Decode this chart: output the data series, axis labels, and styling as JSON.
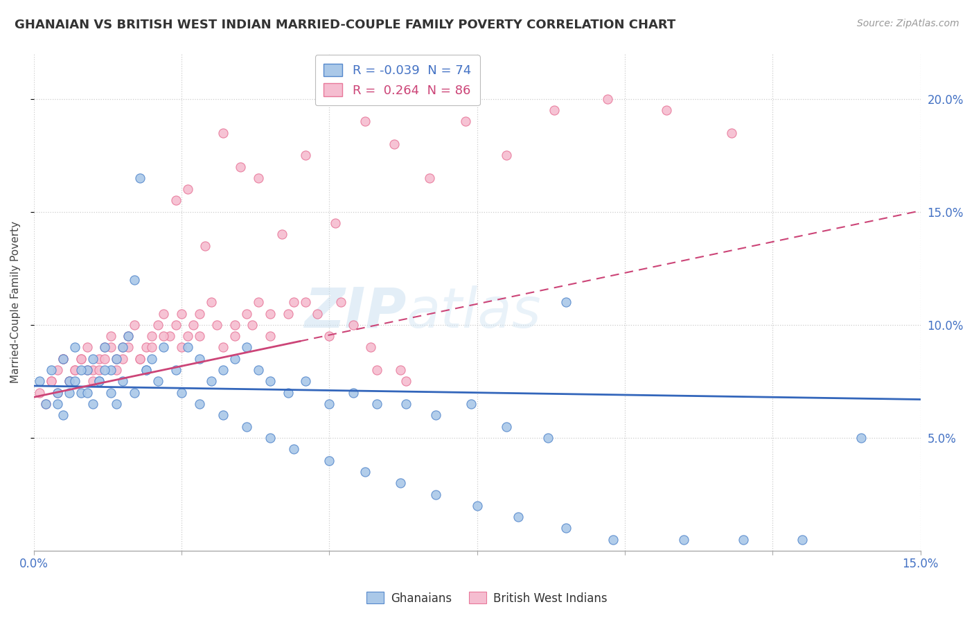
{
  "title": "GHANAIAN VS BRITISH WEST INDIAN MARRIED-COUPLE FAMILY POVERTY CORRELATION CHART",
  "source": "Source: ZipAtlas.com",
  "ylabel": "Married-Couple Family Poverty",
  "y_ticks": [
    0.05,
    0.1,
    0.15,
    0.2
  ],
  "y_tick_labels": [
    "5.0%",
    "10.0%",
    "15.0%",
    "20.0%"
  ],
  "x_range": [
    0.0,
    0.15
  ],
  "y_range": [
    0.0,
    0.22
  ],
  "r_ghanaian": -0.039,
  "n_ghanaian": 74,
  "r_bwi": 0.264,
  "n_bwi": 86,
  "color_ghanaian_fill": "#aac8e8",
  "color_ghanaian_edge": "#5588cc",
  "color_bwi_fill": "#f5bdd0",
  "color_bwi_edge": "#e8789a",
  "color_line_ghanaian": "#3366bb",
  "color_line_bwi": "#cc4477",
  "watermark_color": "#c8dff0",
  "ghanaian_x": [
    0.001,
    0.002,
    0.003,
    0.004,
    0.005,
    0.006,
    0.007,
    0.008,
    0.009,
    0.01,
    0.011,
    0.012,
    0.013,
    0.014,
    0.015,
    0.016,
    0.017,
    0.018,
    0.019,
    0.02,
    0.022,
    0.024,
    0.026,
    0.028,
    0.03,
    0.032,
    0.034,
    0.036,
    0.038,
    0.04,
    0.043,
    0.046,
    0.05,
    0.054,
    0.058,
    0.063,
    0.068,
    0.074,
    0.08,
    0.087,
    0.004,
    0.005,
    0.006,
    0.007,
    0.008,
    0.009,
    0.01,
    0.011,
    0.012,
    0.013,
    0.014,
    0.015,
    0.017,
    0.019,
    0.021,
    0.025,
    0.028,
    0.032,
    0.036,
    0.04,
    0.044,
    0.05,
    0.056,
    0.062,
    0.068,
    0.075,
    0.082,
    0.09,
    0.098,
    0.11,
    0.12,
    0.13,
    0.14,
    0.09
  ],
  "ghanaian_y": [
    0.075,
    0.065,
    0.08,
    0.07,
    0.085,
    0.075,
    0.09,
    0.07,
    0.08,
    0.085,
    0.075,
    0.09,
    0.08,
    0.085,
    0.09,
    0.095,
    0.12,
    0.165,
    0.08,
    0.085,
    0.09,
    0.08,
    0.09,
    0.085,
    0.075,
    0.08,
    0.085,
    0.09,
    0.08,
    0.075,
    0.07,
    0.075,
    0.065,
    0.07,
    0.065,
    0.065,
    0.06,
    0.065,
    0.055,
    0.05,
    0.065,
    0.06,
    0.07,
    0.075,
    0.08,
    0.07,
    0.065,
    0.075,
    0.08,
    0.07,
    0.065,
    0.075,
    0.07,
    0.08,
    0.075,
    0.07,
    0.065,
    0.06,
    0.055,
    0.05,
    0.045,
    0.04,
    0.035,
    0.03,
    0.025,
    0.02,
    0.015,
    0.01,
    0.005,
    0.005,
    0.005,
    0.005,
    0.05,
    0.11
  ],
  "bwi_x": [
    0.001,
    0.002,
    0.003,
    0.004,
    0.005,
    0.006,
    0.007,
    0.008,
    0.009,
    0.01,
    0.011,
    0.012,
    0.013,
    0.014,
    0.015,
    0.016,
    0.017,
    0.018,
    0.019,
    0.02,
    0.021,
    0.022,
    0.023,
    0.024,
    0.025,
    0.026,
    0.027,
    0.028,
    0.03,
    0.032,
    0.034,
    0.036,
    0.038,
    0.04,
    0.043,
    0.046,
    0.05,
    0.054,
    0.058,
    0.063,
    0.003,
    0.004,
    0.005,
    0.006,
    0.007,
    0.008,
    0.009,
    0.01,
    0.011,
    0.012,
    0.013,
    0.014,
    0.015,
    0.016,
    0.018,
    0.02,
    0.022,
    0.025,
    0.028,
    0.031,
    0.034,
    0.037,
    0.04,
    0.044,
    0.048,
    0.052,
    0.057,
    0.062,
    0.024,
    0.026,
    0.029,
    0.032,
    0.035,
    0.038,
    0.042,
    0.046,
    0.051,
    0.056,
    0.061,
    0.067,
    0.073,
    0.08,
    0.088,
    0.097,
    0.107,
    0.118
  ],
  "bwi_y": [
    0.07,
    0.065,
    0.075,
    0.08,
    0.085,
    0.075,
    0.08,
    0.085,
    0.09,
    0.08,
    0.085,
    0.09,
    0.095,
    0.085,
    0.09,
    0.095,
    0.1,
    0.085,
    0.09,
    0.095,
    0.1,
    0.105,
    0.095,
    0.1,
    0.105,
    0.095,
    0.1,
    0.105,
    0.11,
    0.09,
    0.1,
    0.105,
    0.11,
    0.095,
    0.105,
    0.11,
    0.095,
    0.1,
    0.08,
    0.075,
    0.075,
    0.07,
    0.085,
    0.075,
    0.08,
    0.085,
    0.08,
    0.075,
    0.08,
    0.085,
    0.09,
    0.08,
    0.085,
    0.09,
    0.085,
    0.09,
    0.095,
    0.09,
    0.095,
    0.1,
    0.095,
    0.1,
    0.105,
    0.11,
    0.105,
    0.11,
    0.09,
    0.08,
    0.155,
    0.16,
    0.135,
    0.185,
    0.17,
    0.165,
    0.14,
    0.175,
    0.145,
    0.19,
    0.18,
    0.165,
    0.19,
    0.175,
    0.195,
    0.2,
    0.195,
    0.185
  ]
}
